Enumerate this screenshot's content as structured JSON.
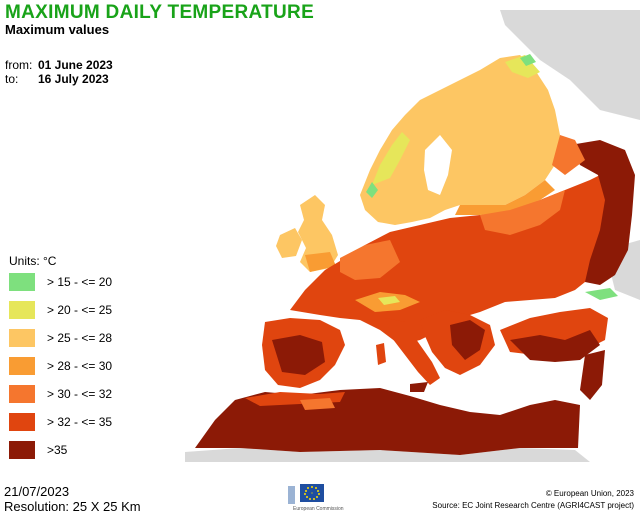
{
  "header": {
    "title": "MAXIMUM DAILY TEMPERATURE",
    "subtitle": "Maximum values"
  },
  "period": {
    "from_label": "from:",
    "from_value": "01 June 2023",
    "to_label": "to:",
    "to_value": "16 July 2023"
  },
  "legend": {
    "units": "Units: °C",
    "classes": [
      {
        "label": "> 15 - <= 20",
        "color": "#7ee07e"
      },
      {
        "label": "> 20 - <= 25",
        "color": "#e6e65a"
      },
      {
        "label": "> 25 - <= 28",
        "color": "#fdc663"
      },
      {
        "label": "> 28 - <= 30",
        "color": "#f99c33"
      },
      {
        "label": "> 30 - <= 32",
        "color": "#f5762e"
      },
      {
        "label": "> 32 - <= 35",
        "color": "#e0450f"
      },
      {
        "label": ">35",
        "color": "#8c1a06"
      }
    ]
  },
  "footer": {
    "date": "21/07/2023",
    "resolution": "Resolution: 25 X 25 Km",
    "copyright": "© European Union, 2023",
    "source": "Source: EC Joint Research Centre (AGRI4CAST project)",
    "logo_caption": "European Commission"
  },
  "colors": {
    "title": "#19a319",
    "land_outside": "#d9d9d9",
    "sea": "#ffffff"
  }
}
